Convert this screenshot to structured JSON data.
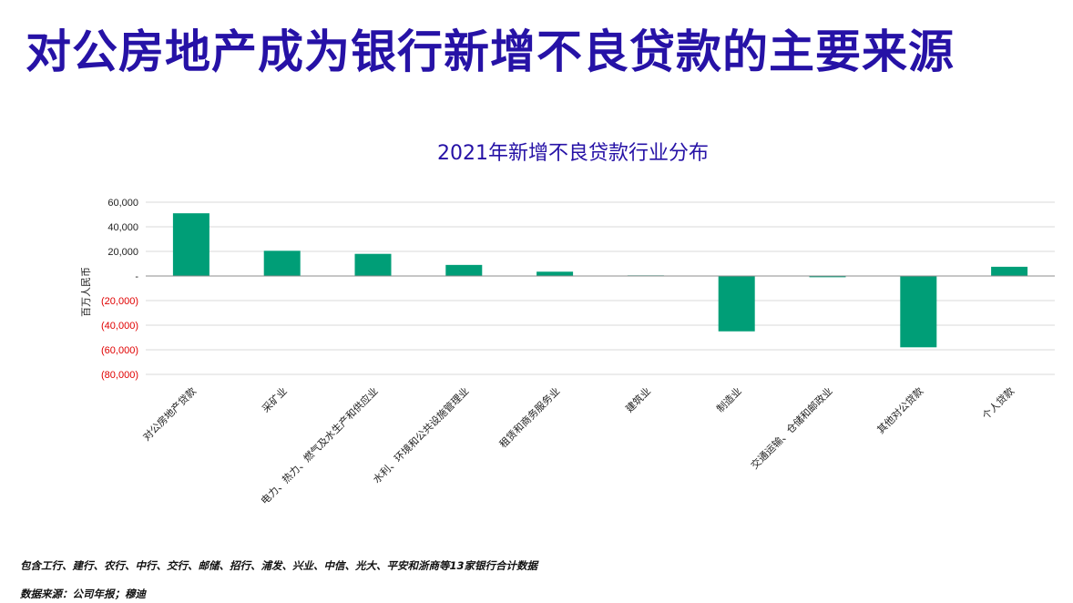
{
  "slide": {
    "title": "对公房地产成为银行新增不良贷款的主要来源",
    "footnotes": [
      "包含工行、建行、农行、中行、交行、邮储、招行、浦发、兴业、中信、光大、平安和浙商等13家银行合计数据",
      "数据来源：公司年报；穆迪"
    ]
  },
  "chart_data": {
    "type": "bar",
    "title": "2021年新增不良贷款行业分布",
    "ylabel": "百万人民币",
    "categories": [
      "对公房地产贷款",
      "采矿业",
      "电力、热力、燃气及水生产和供应业",
      "水利、环境和公共设施管理业",
      "租赁和商务服务业",
      "建筑业",
      "制造业",
      "交通运输、仓储和邮政业",
      "其他对公贷款",
      "个人贷款"
    ],
    "values": [
      51000,
      20500,
      18000,
      9000,
      3500,
      500,
      -45000,
      -1000,
      -58000,
      7500
    ],
    "ylim": [
      -80000,
      60000
    ],
    "yticks": [
      60000,
      40000,
      20000,
      0,
      -20000,
      -40000,
      -60000,
      -80000
    ],
    "ytick_labels": [
      "60,000",
      "40,000",
      "20,000",
      "-",
      "(20,000)",
      "(40,000)",
      "(60,000)",
      "(80,000)"
    ],
    "grid": true,
    "colors": {
      "bar": "#009e77",
      "negative_tick": "#e00000",
      "positive_tick": "#222222",
      "title": "#2612a6"
    }
  }
}
